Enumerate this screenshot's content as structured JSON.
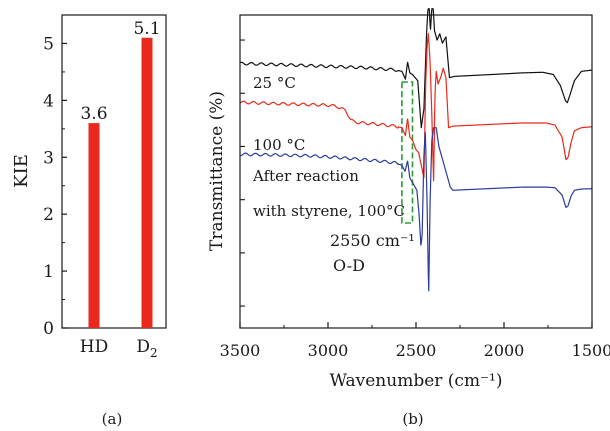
{
  "panel_a_label": "(a)",
  "panel_b_label": "(b)",
  "chart_data": [
    {
      "type": "bar",
      "panel": "a",
      "ylabel": "KIE",
      "ylim": [
        0,
        5.5
      ],
      "yticks": [
        "0",
        "1",
        "2",
        "3",
        "4",
        "5"
      ],
      "categories": [
        "HD",
        "D2"
      ],
      "category_labels": [
        {
          "main": "HD",
          "sub": ""
        },
        {
          "main": "D",
          "sub": "2"
        }
      ],
      "values": [
        3.6,
        5.1
      ],
      "value_labels": [
        "3.6",
        "5.1"
      ],
      "bar_color": "#e8291c"
    },
    {
      "type": "line",
      "panel": "b",
      "xlabel": "Wavenumber (cm⁻¹)",
      "ylabel": "Transmittance (%)",
      "xlim": [
        3500,
        1500
      ],
      "xticks": [
        "3500",
        "3000",
        "2500",
        "2000",
        "1500"
      ],
      "y_ticks_labeled": false,
      "annotations": [
        "25 °C",
        "100 °C",
        "After reaction",
        "with styrene, 100°C"
      ],
      "peak_label": "2550 cm⁻¹",
      "peak_assignment": "O-D",
      "highlight_band_color": "#2e9a3e",
      "series": [
        {
          "color": "#111111",
          "points": [
            [
              3500,
              0.155
            ],
            [
              3300,
              0.158
            ],
            [
              3100,
              0.162
            ],
            [
              2950,
              0.165
            ],
            [
              2800,
              0.168
            ],
            [
              2700,
              0.172
            ],
            [
              2620,
              0.175
            ],
            [
              2580,
              0.18
            ],
            [
              2560,
              0.205
            ],
            [
              2548,
              0.15
            ],
            [
              2535,
              0.185
            ],
            [
              2520,
              0.19
            ],
            [
              2490,
              0.21
            ],
            [
              2470,
              0.36
            ],
            [
              2455,
              0.3
            ],
            [
              2440,
              0.06
            ],
            [
              2432,
              -0.02
            ],
            [
              2425,
              -0.02
            ],
            [
              2418,
              0.05
            ],
            [
              2410,
              -0.02
            ],
            [
              2402,
              -0.02
            ],
            [
              2395,
              0.05
            ],
            [
              2380,
              0.08
            ],
            [
              2365,
              0.06
            ],
            [
              2350,
              0.09
            ],
            [
              2330,
              0.07
            ],
            [
              2310,
              0.2
            ],
            [
              2280,
              0.196
            ],
            [
              2100,
              0.191
            ],
            [
              1900,
              0.185
            ],
            [
              1780,
              0.183
            ],
            [
              1720,
              0.19
            ],
            [
              1680,
              0.225
            ],
            [
              1650,
              0.275
            ],
            [
              1640,
              0.28
            ],
            [
              1625,
              0.255
            ],
            [
              1600,
              0.21
            ],
            [
              1560,
              0.18
            ],
            [
              1500,
              0.176
            ]
          ]
        },
        {
          "color": "#e8291c",
          "points": [
            [
              3500,
              0.279
            ],
            [
              3300,
              0.283
            ],
            [
              3000,
              0.288
            ],
            [
              2950,
              0.292
            ],
            [
              2900,
              0.305
            ],
            [
              2870,
              0.335
            ],
            [
              2850,
              0.342
            ],
            [
              2800,
              0.345
            ],
            [
              2700,
              0.35
            ],
            [
              2620,
              0.355
            ],
            [
              2580,
              0.36
            ],
            [
              2560,
              0.385
            ],
            [
              2548,
              0.33
            ],
            [
              2535,
              0.39
            ],
            [
              2520,
              0.4
            ],
            [
              2500,
              0.43
            ],
            [
              2485,
              0.44
            ],
            [
              2470,
              0.48
            ],
            [
              2455,
              0.52
            ],
            [
              2445,
              0.22
            ],
            [
              2437,
              0.1
            ],
            [
              2430,
              0.06
            ],
            [
              2420,
              0.15
            ],
            [
              2410,
              0.32
            ],
            [
              2400,
              0.53
            ],
            [
              2392,
              0.25
            ],
            [
              2385,
              0.18
            ],
            [
              2375,
              0.22
            ],
            [
              2360,
              0.2
            ],
            [
              2345,
              0.17
            ],
            [
              2330,
              0.2
            ],
            [
              2315,
              0.36
            ],
            [
              2290,
              0.355
            ],
            [
              2100,
              0.35
            ],
            [
              1900,
              0.345
            ],
            [
              1760,
              0.345
            ],
            [
              1710,
              0.352
            ],
            [
              1670,
              0.39
            ],
            [
              1648,
              0.462
            ],
            [
              1636,
              0.455
            ],
            [
              1620,
              0.41
            ],
            [
              1600,
              0.37
            ],
            [
              1560,
              0.36
            ],
            [
              1500,
              0.357
            ]
          ]
        },
        {
          "color": "#2a3b9c",
          "points": [
            [
              3500,
              0.445
            ],
            [
              3300,
              0.447
            ],
            [
              3100,
              0.45
            ],
            [
              2950,
              0.455
            ],
            [
              2800,
              0.462
            ],
            [
              2700,
              0.467
            ],
            [
              2620,
              0.472
            ],
            [
              2580,
              0.48
            ],
            [
              2562,
              0.5
            ],
            [
              2548,
              0.465
            ],
            [
              2535,
              0.52
            ],
            [
              2515,
              0.54
            ],
            [
              2495,
              0.56
            ],
            [
              2482,
              0.64
            ],
            [
              2472,
              0.74
            ],
            [
              2465,
              0.7
            ],
            [
              2455,
              0.45
            ],
            [
              2447,
              0.37
            ],
            [
              2437,
              0.6
            ],
            [
              2428,
              0.9
            ],
            [
              2420,
              0.6
            ],
            [
              2410,
              0.4
            ],
            [
              2400,
              0.36
            ],
            [
              2385,
              0.36
            ],
            [
              2370,
              0.42
            ],
            [
              2355,
              0.45
            ],
            [
              2340,
              0.48
            ],
            [
              2320,
              0.52
            ],
            [
              2305,
              0.55
            ],
            [
              2290,
              0.56
            ],
            [
              2100,
              0.555
            ],
            [
              1900,
              0.55
            ],
            [
              1760,
              0.55
            ],
            [
              1710,
              0.552
            ],
            [
              1670,
              0.575
            ],
            [
              1648,
              0.615
            ],
            [
              1636,
              0.61
            ],
            [
              1620,
              0.58
            ],
            [
              1600,
              0.56
            ],
            [
              1560,
              0.556
            ],
            [
              1500,
              0.555
            ]
          ]
        }
      ]
    }
  ]
}
